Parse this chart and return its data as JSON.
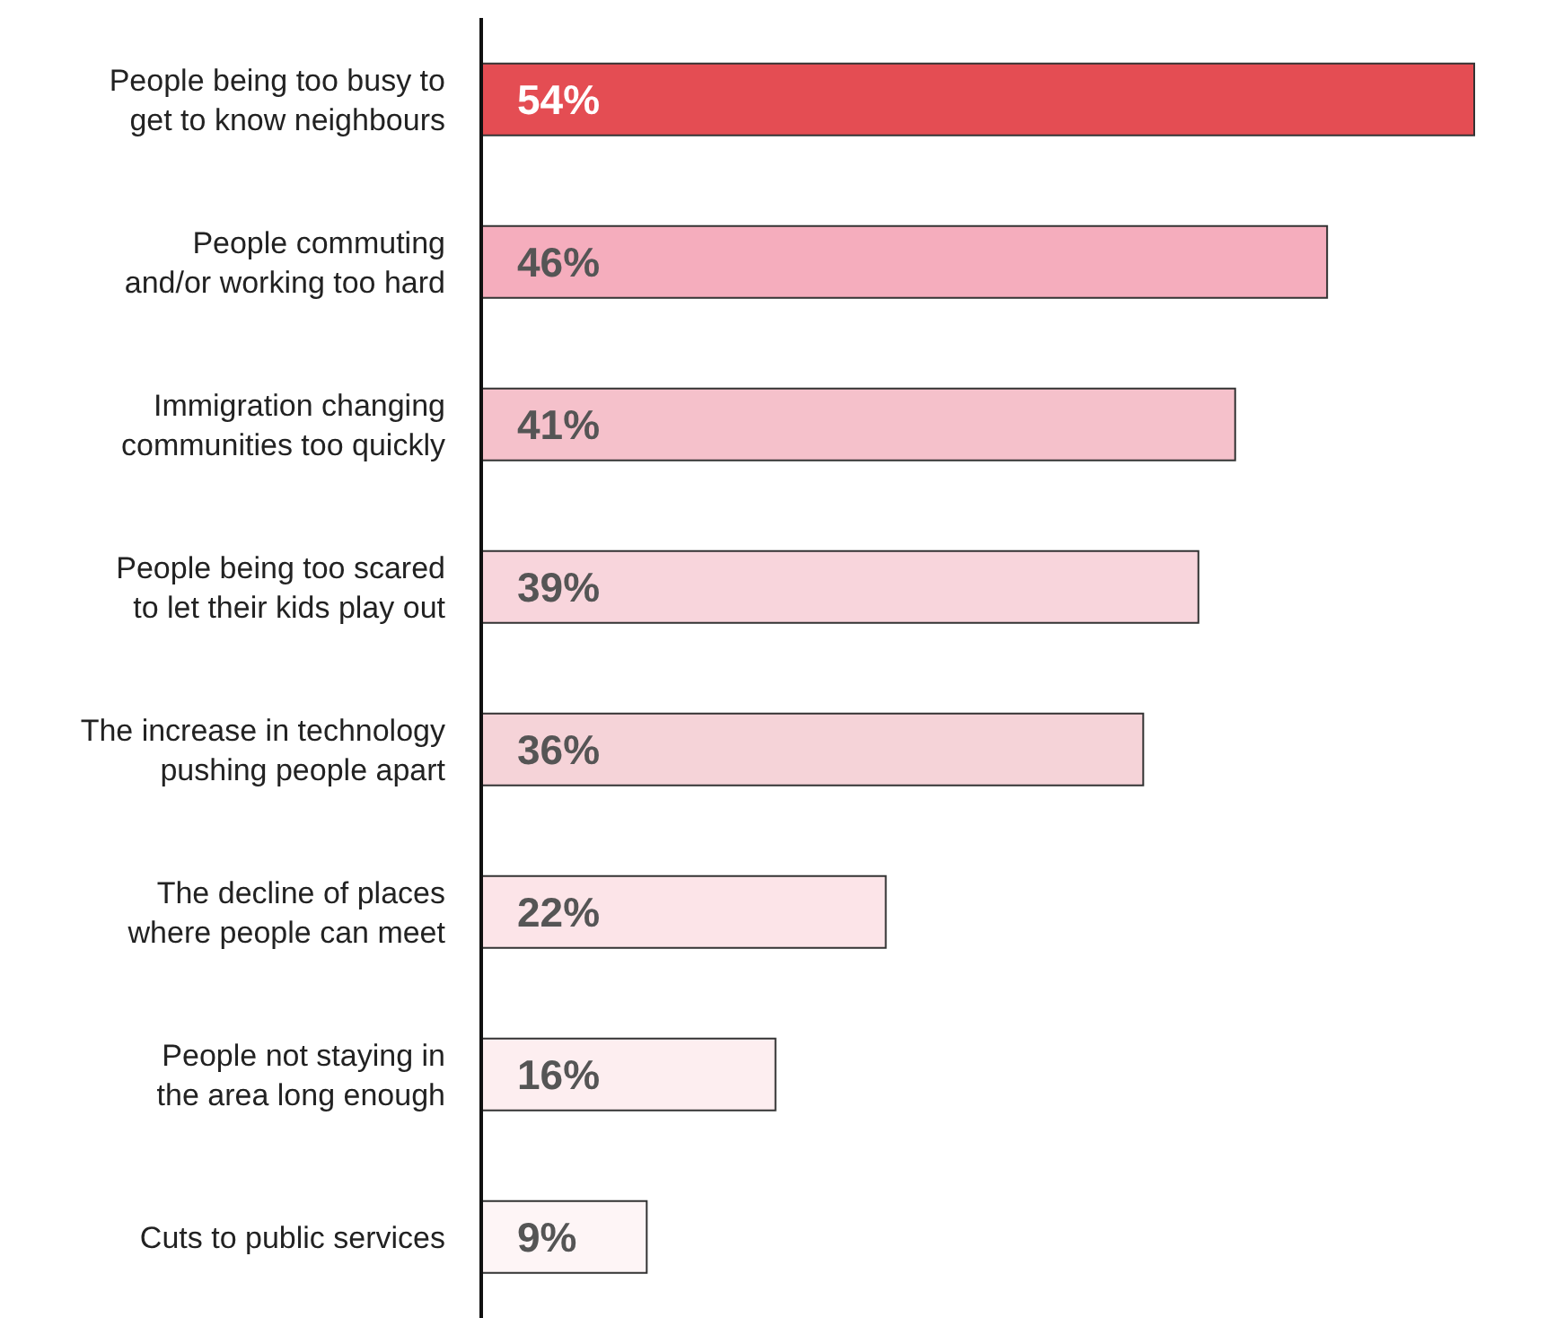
{
  "chart_data": {
    "type": "bar",
    "orientation": "horizontal",
    "data_labels": true,
    "categories": [
      "People being too busy to get to know neighbours",
      "People commuting and/or working too hard",
      "Immigration changing communities too quickly",
      "People being too scared to let their kids play out",
      "The increase in technology pushing people apart",
      "The decline of places where people can meet",
      "People not staying in the area long enough",
      "Cuts to public services"
    ],
    "values": [
      54,
      46,
      41,
      39,
      36,
      22,
      16,
      9
    ],
    "value_labels": [
      "54%",
      "46%",
      "41%",
      "39%",
      "36%",
      "22%",
      "16%",
      "9%"
    ],
    "colors": [
      "#e44d53",
      "#f5adbd",
      "#f5c1cb",
      "#f8d5dc",
      "#f5d3d8",
      "#fce4e8",
      "#fdeef0",
      "#fef5f6"
    ],
    "grid": false,
    "legend": false
  }
}
